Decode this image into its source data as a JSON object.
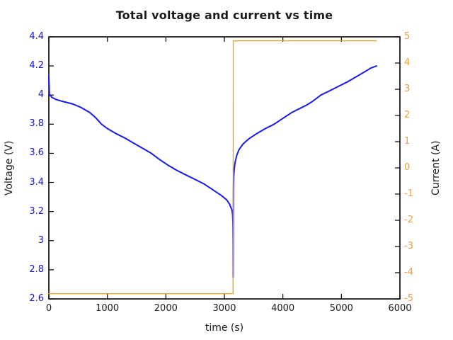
{
  "chart_data": {
    "type": "line",
    "title": "Total voltage and current vs time",
    "xlabel": "time (s)",
    "grid": false,
    "legend": "none",
    "background": "#ffffff",
    "xlim": [
      0,
      6000
    ],
    "x_tick_labels": [
      "0",
      "1000",
      "2000",
      "3000",
      "4000",
      "5000",
      "6000"
    ],
    "x_tick_color": "#1a1a1a",
    "left_axis": {
      "label": "Voltage (V)",
      "lim": [
        2.6,
        4.4
      ],
      "tick_labels": [
        "2.6",
        "2.8",
        "3",
        "3.2",
        "3.4",
        "3.6",
        "3.8",
        "4",
        "4.2",
        "4.4"
      ],
      "color": "#1414dd"
    },
    "right_axis": {
      "label": "Current (A)",
      "lim": [
        -5,
        5
      ],
      "tick_labels": [
        "-5",
        "-4",
        "-3",
        "-2",
        "-1",
        "0",
        "1",
        "2",
        "3",
        "4",
        "5"
      ],
      "color": "#e8a33d"
    },
    "series": [
      {
        "name": "voltage",
        "axis": "left",
        "color": "#1a1ae8",
        "width": 2,
        "x": [
          0,
          10,
          50,
          120,
          250,
          400,
          550,
          700,
          800,
          900,
          1000,
          1150,
          1300,
          1450,
          1600,
          1750,
          1900,
          2050,
          2200,
          2350,
          2500,
          2650,
          2800,
          2950,
          3040,
          3090,
          3110,
          3130,
          3140,
          3146,
          3149,
          3150,
          3152,
          3155,
          3160,
          3170,
          3185,
          3210,
          3250,
          3320,
          3420,
          3550,
          3700,
          3850,
          4000,
          4150,
          4300,
          4400,
          4500,
          4650,
          4800,
          4950,
          5100,
          5250,
          5400,
          5500,
          5600
        ],
        "y": [
          4.13,
          4.005,
          3.985,
          3.97,
          3.955,
          3.94,
          3.915,
          3.88,
          3.845,
          3.8,
          3.77,
          3.735,
          3.705,
          3.67,
          3.635,
          3.6,
          3.555,
          3.515,
          3.48,
          3.45,
          3.42,
          3.39,
          3.35,
          3.31,
          3.28,
          3.25,
          3.23,
          3.21,
          3.18,
          3.12,
          3.0,
          2.75,
          3.1,
          3.35,
          3.44,
          3.5,
          3.54,
          3.585,
          3.625,
          3.665,
          3.7,
          3.735,
          3.77,
          3.8,
          3.84,
          3.88,
          3.91,
          3.93,
          3.955,
          4.0,
          4.03,
          4.06,
          4.09,
          4.125,
          4.16,
          4.185,
          4.2
        ]
      },
      {
        "name": "current",
        "axis": "right",
        "color": "#e8a320",
        "width": 1.4,
        "x": [
          0,
          3149,
          3152,
          5600
        ],
        "y": [
          -4.8,
          -4.8,
          4.85,
          4.85
        ]
      }
    ]
  }
}
